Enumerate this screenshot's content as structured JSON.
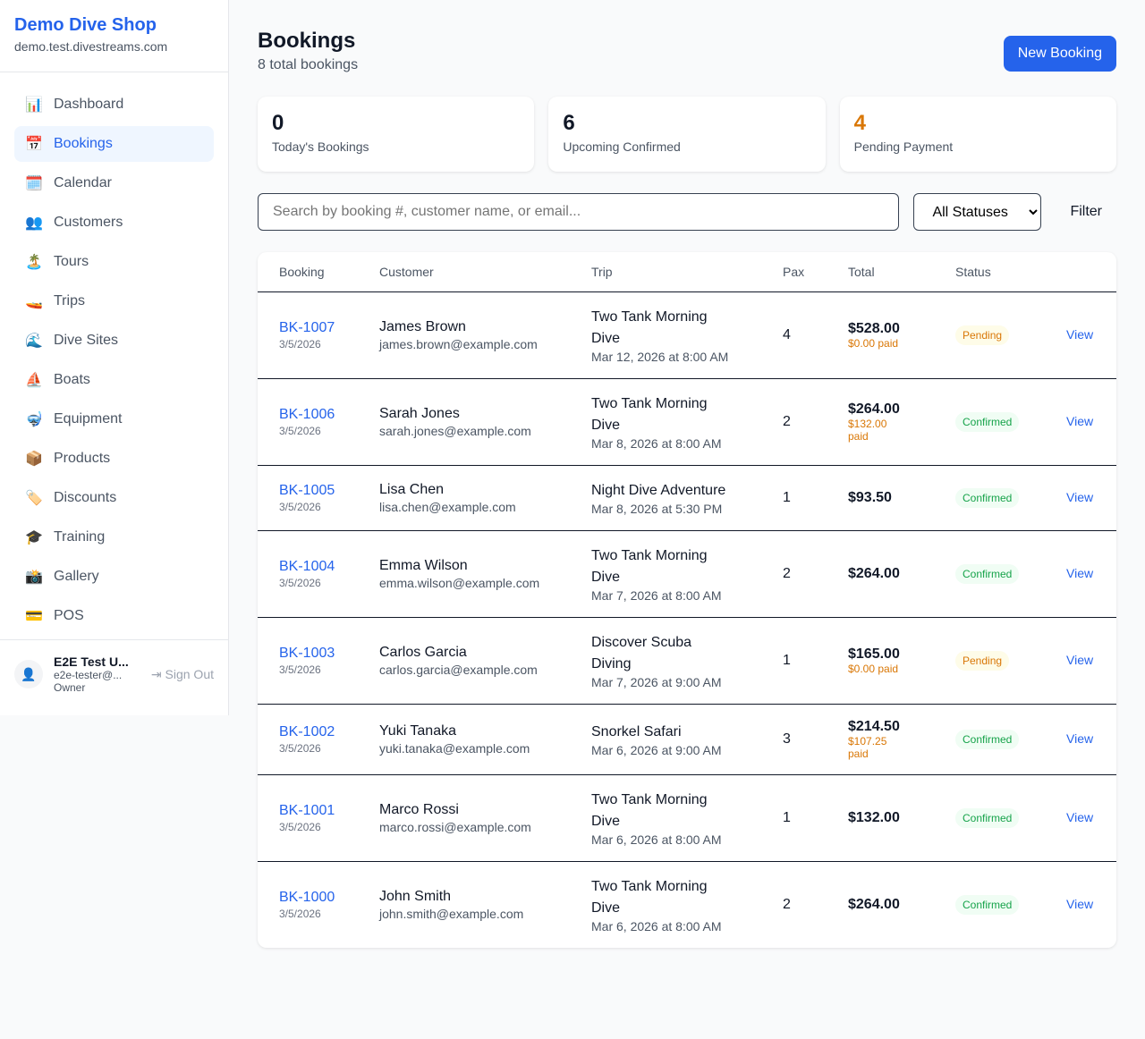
{
  "sidebar": {
    "shop_name": "Demo Dive Shop",
    "domain": "demo.test.divestreams.com",
    "items": [
      {
        "label": "Dashboard",
        "icon": "📊",
        "name": "bar-chart"
      },
      {
        "label": "Bookings",
        "icon": "📅",
        "name": "calendar",
        "active": true
      },
      {
        "label": "Calendar",
        "icon": "🗓️",
        "name": "spiral-calendar"
      },
      {
        "label": "Customers",
        "icon": "👥",
        "name": "users"
      },
      {
        "label": "Tours",
        "icon": "🏝️",
        "name": "island"
      },
      {
        "label": "Trips",
        "icon": "🚤",
        "name": "speedboat"
      },
      {
        "label": "Dive Sites",
        "icon": "🌊",
        "name": "wave"
      },
      {
        "label": "Boats",
        "icon": "⛵",
        "name": "sailboat"
      },
      {
        "label": "Equipment",
        "icon": "🤿",
        "name": "diving-mask"
      },
      {
        "label": "Products",
        "icon": "📦",
        "name": "package"
      },
      {
        "label": "Discounts",
        "icon": "🏷️",
        "name": "tag"
      },
      {
        "label": "Training",
        "icon": "🎓",
        "name": "graduation-cap"
      },
      {
        "label": "Gallery",
        "icon": "📸",
        "name": "camera"
      },
      {
        "label": "POS",
        "icon": "💳",
        "name": "credit-card"
      }
    ],
    "user": {
      "name": "E2E Test U...",
      "email": "e2e-tester@...",
      "role": "Owner",
      "sign_out": "Sign Out"
    }
  },
  "header": {
    "title": "Bookings",
    "subtitle": "8 total bookings",
    "new_button": "New Booking"
  },
  "stats": [
    {
      "value": "0",
      "label": "Today's Bookings",
      "color": "#111827"
    },
    {
      "value": "6",
      "label": "Upcoming Confirmed",
      "color": "#111827"
    },
    {
      "value": "4",
      "label": "Pending Payment",
      "color": "#d97706"
    }
  ],
  "filters": {
    "search_placeholder": "Search by booking #, customer name, or email...",
    "status_selected": "All Statuses",
    "filter_button": "Filter"
  },
  "table": {
    "columns": [
      "Booking",
      "Customer",
      "Trip",
      "Pax",
      "Total",
      "Status",
      ""
    ],
    "rows": [
      {
        "id": "BK-1007",
        "date": "3/5/2026",
        "customer": "James Brown",
        "email": "james.brown@example.com",
        "trip": "Two Tank Morning Dive",
        "trip_date": "Mar 12, 2026 at 8:00 AM",
        "pax": "4",
        "total": "$528.00",
        "paid": "$0.00 paid",
        "status": "Pending",
        "action": "View"
      },
      {
        "id": "BK-1006",
        "date": "3/5/2026",
        "customer": "Sarah Jones",
        "email": "sarah.jones@example.com",
        "trip": "Two Tank Morning Dive",
        "trip_date": "Mar 8, 2026 at 8:00 AM",
        "pax": "2",
        "total": "$264.00",
        "paid": "$132.00 paid",
        "status": "Confirmed",
        "action": "View"
      },
      {
        "id": "BK-1005",
        "date": "3/5/2026",
        "customer": "Lisa Chen",
        "email": "lisa.chen@example.com",
        "trip": "Night Dive Adventure",
        "trip_date": "Mar 8, 2026 at 5:30 PM",
        "pax": "1",
        "total": "$93.50",
        "paid": null,
        "status": "Confirmed",
        "action": "View"
      },
      {
        "id": "BK-1004",
        "date": "3/5/2026",
        "customer": "Emma Wilson",
        "email": "emma.wilson@example.com",
        "trip": "Two Tank Morning Dive",
        "trip_date": "Mar 7, 2026 at 8:00 AM",
        "pax": "2",
        "total": "$264.00",
        "paid": null,
        "status": "Confirmed",
        "action": "View"
      },
      {
        "id": "BK-1003",
        "date": "3/5/2026",
        "customer": "Carlos Garcia",
        "email": "carlos.garcia@example.com",
        "trip": "Discover Scuba Diving",
        "trip_date": "Mar 7, 2026 at 9:00 AM",
        "pax": "1",
        "total": "$165.00",
        "paid": "$0.00 paid",
        "status": "Pending",
        "action": "View"
      },
      {
        "id": "BK-1002",
        "date": "3/5/2026",
        "customer": "Yuki Tanaka",
        "email": "yuki.tanaka@example.com",
        "trip": "Snorkel Safari",
        "trip_date": "Mar 6, 2026 at 9:00 AM",
        "pax": "3",
        "total": "$214.50",
        "paid": "$107.25 paid",
        "status": "Confirmed",
        "action": "View"
      },
      {
        "id": "BK-1001",
        "date": "3/5/2026",
        "customer": "Marco Rossi",
        "email": "marco.rossi@example.com",
        "trip": "Two Tank Morning Dive",
        "trip_date": "Mar 6, 2026 at 8:00 AM",
        "pax": "1",
        "total": "$132.00",
        "paid": null,
        "status": "Confirmed",
        "action": "View"
      },
      {
        "id": "BK-1000",
        "date": "3/5/2026",
        "customer": "John Smith",
        "email": "john.smith@example.com",
        "trip": "Two Tank Morning Dive",
        "trip_date": "Mar 6, 2026 at 8:00 AM",
        "pax": "2",
        "total": "$264.00",
        "paid": null,
        "status": "Confirmed",
        "action": "View"
      }
    ]
  }
}
